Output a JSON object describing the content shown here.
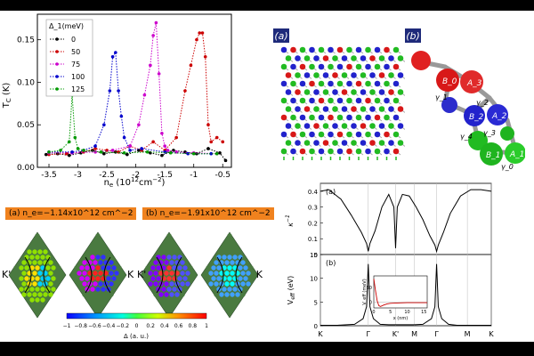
{
  "chart_data": [
    {
      "type": "line",
      "ylabel": "T_C (K)",
      "xlabel": "n_e (10^12 cm^-2)",
      "xlim": [
        -3.7,
        -0.35
      ],
      "ylim": [
        0,
        0.18
      ],
      "xticks": [
        "-3.5",
        "-3",
        "-2.5",
        "-2",
        "-1.5",
        "-1",
        "-0.5"
      ],
      "yticks": [
        "0.00",
        "0.05",
        "0.10",
        "0.15"
      ],
      "legend_title": "Δ_1(meV)",
      "legend_placement": "top-left",
      "series": [
        {
          "name": "0",
          "color": "#000000",
          "x": [
            -3.55,
            -3.35,
            -3.15,
            -2.95,
            -2.75,
            -2.55,
            -2.35,
            -2.15,
            -1.95,
            -1.75,
            -1.55,
            -1.35,
            -1.15,
            -0.95,
            -0.75,
            -0.55,
            -0.45
          ],
          "y": [
            0.015,
            0.016,
            0.014,
            0.017,
            0.02,
            0.016,
            0.018,
            0.015,
            0.02,
            0.017,
            0.014,
            0.02,
            0.018,
            0.016,
            0.022,
            0.017,
            0.008
          ]
        },
        {
          "name": "50",
          "color": "#cc0000",
          "x": [
            -3.5,
            -3.2,
            -2.9,
            -2.7,
            -2.5,
            -2.3,
            -2.1,
            -1.9,
            -1.7,
            -1.5,
            -1.3,
            -1.15,
            -1.05,
            -0.95,
            -0.9,
            -0.85,
            -0.8,
            -0.75,
            -0.7,
            -0.6,
            -0.5
          ],
          "y": [
            0.015,
            0.016,
            0.018,
            0.022,
            0.02,
            0.018,
            0.025,
            0.02,
            0.03,
            0.02,
            0.035,
            0.09,
            0.12,
            0.15,
            0.158,
            0.158,
            0.13,
            0.05,
            0.03,
            0.035,
            0.03
          ]
        },
        {
          "name": "75",
          "color": "#cc00cc",
          "x": [
            -3.5,
            -3.1,
            -2.7,
            -2.4,
            -2.1,
            -1.95,
            -1.85,
            -1.75,
            -1.7,
            -1.65,
            -1.6,
            -1.55,
            -1.5,
            -1.45,
            -1.3,
            -1.0,
            -0.6
          ],
          "y": [
            0.017,
            0.017,
            0.018,
            0.02,
            0.025,
            0.05,
            0.085,
            0.12,
            0.155,
            0.17,
            0.11,
            0.04,
            0.025,
            0.02,
            0.018,
            0.017,
            0.016
          ]
        },
        {
          "name": "100",
          "color": "#0000cc",
          "x": [
            -3.5,
            -3.1,
            -2.9,
            -2.7,
            -2.55,
            -2.45,
            -2.4,
            -2.35,
            -2.3,
            -2.25,
            -2.2,
            -2.1,
            -1.9,
            -1.5,
            -1.1,
            -0.7
          ],
          "y": [
            0.018,
            0.018,
            0.02,
            0.025,
            0.05,
            0.09,
            0.13,
            0.135,
            0.09,
            0.06,
            0.035,
            0.02,
            0.022,
            0.018,
            0.016,
            0.016
          ]
        },
        {
          "name": "125",
          "color": "#009900",
          "x": [
            -3.5,
            -3.3,
            -3.15,
            -3.1,
            -3.05,
            -3.0,
            -2.9,
            -2.6,
            -2.2,
            -1.8,
            -1.4,
            -1.0,
            -0.6
          ],
          "y": [
            0.018,
            0.02,
            0.03,
            0.085,
            0.035,
            0.022,
            0.02,
            0.018,
            0.017,
            0.018,
            0.017,
            0.016,
            0.016
          ]
        }
      ]
    },
    {
      "type": "line",
      "panel_label": "(a)",
      "ylabel": "κ^-1",
      "ylim": [
        0,
        0.45
      ],
      "yticks": [
        "0",
        "0.1",
        "0.2",
        "0.3",
        "0.4"
      ],
      "xticks": [
        "K",
        "Γ",
        "K'",
        "M",
        "Γ",
        "M",
        "K"
      ],
      "series": [
        {
          "color": "#000000",
          "x": [
            0,
            0.05,
            0.12,
            0.18,
            0.24,
            0.27,
            0.28,
            0.29,
            0.32,
            0.36,
            0.4,
            0.43,
            0.44,
            0.45,
            0.48,
            0.52,
            0.56,
            0.6,
            0.64,
            0.67,
            0.68,
            0.69,
            0.72,
            0.76,
            0.82,
            0.88,
            0.94,
            1.0
          ],
          "y": [
            0.4,
            0.41,
            0.35,
            0.25,
            0.14,
            0.07,
            0.02,
            0.07,
            0.15,
            0.3,
            0.38,
            0.3,
            0.04,
            0.3,
            0.38,
            0.37,
            0.3,
            0.22,
            0.12,
            0.06,
            0.02,
            0.06,
            0.14,
            0.26,
            0.37,
            0.41,
            0.41,
            0.4
          ]
        }
      ]
    },
    {
      "type": "line",
      "panel_label": "(b)",
      "ylabel": "V_eff (eV)",
      "ylim": [
        0,
        15
      ],
      "yticks": [
        "0",
        "5",
        "10",
        "15"
      ],
      "xticks": [
        "K",
        "Γ",
        "K'",
        "M",
        "Γ",
        "M",
        "K"
      ],
      "series": [
        {
          "color": "#000000",
          "x": [
            0,
            0.1,
            0.2,
            0.25,
            0.27,
            0.28,
            0.29,
            0.31,
            0.35,
            0.4,
            0.45,
            0.5,
            0.55,
            0.6,
            0.65,
            0.67,
            0.68,
            0.69,
            0.71,
            0.75,
            0.8,
            0.9,
            1.0
          ],
          "y": [
            0.1,
            0.1,
            0.3,
            1.5,
            4,
            13,
            4,
            1.5,
            0.3,
            0.2,
            0.2,
            0.2,
            0.2,
            0.3,
            1.5,
            4,
            13,
            4,
            1.5,
            0.3,
            0.1,
            0.1,
            0.1
          ]
        }
      ],
      "inset": {
        "ylabel": "V_eff (meV)",
        "xlabel": "x (nm)",
        "xticks": [
          "0",
          "5",
          "10",
          "15"
        ],
        "yticks": [
          "0",
          "50"
        ],
        "series": [
          {
            "color": "#cc0000",
            "x": [
              0,
              0.5,
              1,
              1.5,
              2,
              3,
              4,
              5,
              7,
              10,
              13,
              16
            ],
            "y": [
              80,
              40,
              5,
              -12,
              -15,
              -10,
              -6,
              -4,
              -3,
              -2,
              -2,
              -2
            ]
          }
        ]
      }
    }
  ],
  "heat_panels": {
    "a_label": "(a)",
    "a_text": "n_e=−1.14x10^12 cm^−2",
    "b_label": "(b)",
    "b_text": "n_e=−1.91x10^12 cm^−2",
    "k_left": "K'",
    "k_right": "K",
    "k_left2": "K'",
    "k_right2": "K",
    "colorbar_ticks": [
      "−1",
      "−0.8",
      "−0.6",
      "−0.4",
      "−0.2",
      "0",
      "0.2",
      "0.4",
      "0.6",
      "0.8",
      "1"
    ],
    "colorbar_label": "Δ (a. u.)",
    "accent": "#f0821e"
  },
  "lattice_panels": {
    "a_label": "(a)",
    "b_label": "(b)",
    "atoms": [
      "B_0",
      "A_3",
      "A_2",
      "B_2",
      "B_1",
      "A_1"
    ],
    "hoppings": [
      "γ_1",
      "γ_2",
      "γ_3",
      "γ_4",
      "γ_0"
    ],
    "label_bg": "#1e2a7a"
  }
}
